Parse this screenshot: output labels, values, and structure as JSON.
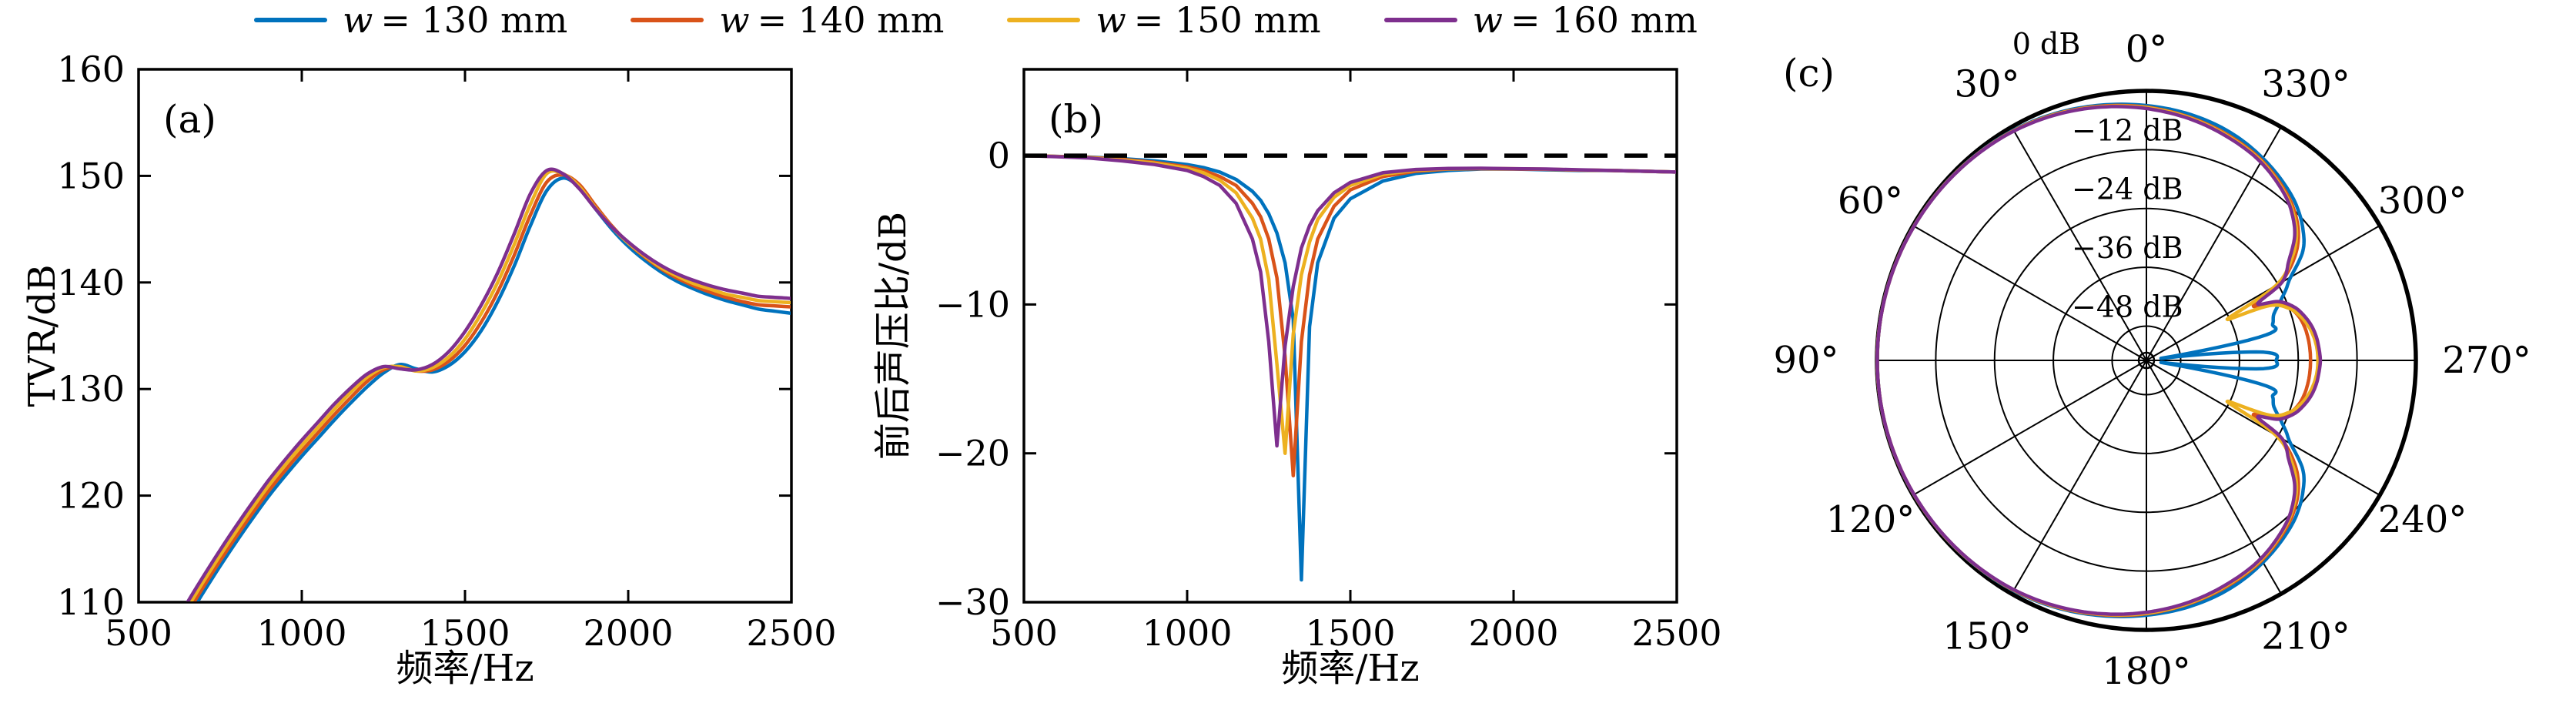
{
  "figure": {
    "background": "#ffffff"
  },
  "legend": {
    "items": [
      {
        "symbol": "line",
        "color": "#0072BD",
        "var": "w",
        "label": "= 130 mm"
      },
      {
        "symbol": "line",
        "color": "#D95319",
        "var": "w",
        "label": "= 140 mm"
      },
      {
        "symbol": "line",
        "color": "#EDB120",
        "var": "w",
        "label": "= 150 mm"
      },
      {
        "symbol": "line",
        "color": "#7E2F8E",
        "var": "w",
        "label": "= 160 mm"
      }
    ]
  },
  "panels": {
    "a": {
      "label": "(a)",
      "xlabel": "频率/Hz",
      "ylabel": "TVR/dB"
    },
    "b": {
      "label": "(b)",
      "xlabel": "频率/Hz",
      "ylabel": "前后声压比/dB"
    },
    "c": {
      "label": "(c)"
    }
  },
  "chart_data": [
    {
      "id": "a",
      "type": "line",
      "title": "(a)",
      "xlabel": "频率/Hz",
      "ylabel": "TVR/dB",
      "xlim": [
        500,
        2500
      ],
      "ylim": [
        110,
        160
      ],
      "xticks": [
        500,
        1000,
        1500,
        2000,
        2500
      ],
      "yticks": [
        110,
        120,
        130,
        140,
        150,
        160
      ],
      "grid": false,
      "x": [
        650,
        700,
        750,
        800,
        850,
        900,
        950,
        1000,
        1050,
        1100,
        1150,
        1200,
        1250,
        1300,
        1350,
        1400,
        1450,
        1500,
        1550,
        1600,
        1650,
        1700,
        1750,
        1800,
        1850,
        1900,
        1950,
        2000,
        2050,
        2100,
        2150,
        2200,
        2250,
        2300,
        2350,
        2400,
        2450,
        2500
      ],
      "series": [
        {
          "name": "w = 130 mm",
          "color": "#0072BD",
          "values": [
            108.5,
            111.0,
            113.4,
            115.7,
            117.9,
            120.0,
            121.9,
            123.7,
            125.4,
            127.1,
            128.7,
            130.2,
            131.5,
            132.3,
            131.9,
            131.6,
            132.2,
            133.5,
            135.5,
            138.2,
            141.5,
            145.3,
            148.6,
            149.8,
            148.9,
            146.9,
            145.0,
            143.4,
            142.1,
            141.0,
            140.1,
            139.4,
            138.8,
            138.3,
            137.9,
            137.5,
            137.3,
            137.1
          ]
        },
        {
          "name": "w = 140 mm",
          "color": "#D95319",
          "values": [
            109.0,
            111.5,
            113.9,
            116.2,
            118.4,
            120.5,
            122.4,
            124.2,
            125.9,
            127.6,
            129.2,
            130.7,
            131.8,
            132.1,
            131.7,
            131.8,
            132.6,
            134.1,
            136.3,
            139.1,
            142.5,
            146.3,
            149.4,
            150.1,
            149.2,
            147.2,
            145.3,
            143.7,
            142.4,
            141.3,
            140.4,
            139.7,
            139.1,
            138.6,
            138.2,
            137.9,
            137.8,
            137.7
          ]
        },
        {
          "name": "w = 150 mm",
          "color": "#EDB120",
          "values": [
            109.5,
            112.0,
            114.4,
            116.7,
            118.9,
            121.0,
            122.9,
            124.7,
            126.4,
            128.1,
            129.7,
            131.1,
            132.0,
            132.1,
            131.7,
            132.0,
            133.0,
            134.7,
            137.1,
            140.0,
            143.5,
            147.3,
            150.2,
            150.2,
            149.0,
            147.0,
            145.2,
            143.7,
            142.5,
            141.4,
            140.6,
            139.9,
            139.4,
            138.9,
            138.6,
            138.3,
            138.2,
            138.1
          ]
        },
        {
          "name": "w = 160 mm",
          "color": "#7E2F8E",
          "values": [
            110.0,
            112.5,
            114.9,
            117.2,
            119.4,
            121.5,
            123.4,
            125.2,
            126.9,
            128.6,
            130.1,
            131.4,
            132.1,
            131.9,
            131.8,
            132.3,
            133.5,
            135.4,
            137.9,
            140.9,
            144.5,
            148.3,
            150.5,
            150.2,
            148.8,
            146.9,
            145.2,
            143.8,
            142.6,
            141.6,
            140.8,
            140.2,
            139.7,
            139.3,
            139.0,
            138.7,
            138.6,
            138.5
          ]
        }
      ]
    },
    {
      "id": "b",
      "type": "line",
      "title": "(b)",
      "xlabel": "频率/Hz",
      "ylabel": "前后声压比/dB",
      "xlim": [
        500,
        2500
      ],
      "ylim": [
        -30,
        5.8
      ],
      "xticks": [
        500,
        1000,
        1500,
        2000,
        2500
      ],
      "yticks": [
        0,
        -10,
        -20,
        -30
      ],
      "zero_line": 0,
      "grid": false,
      "x": [
        500,
        600,
        700,
        800,
        900,
        1000,
        1050,
        1100,
        1150,
        1200,
        1225,
        1250,
        1275,
        1300,
        1325,
        1350,
        1375,
        1400,
        1450,
        1500,
        1600,
        1700,
        1800,
        1900,
        2000,
        2100,
        2200,
        2300,
        2400,
        2500
      ],
      "series": [
        {
          "name": "w = 130 mm",
          "color": "#0072BD",
          "values": [
            0.0,
            -0.05,
            -0.1,
            -0.2,
            -0.35,
            -0.6,
            -0.8,
            -1.1,
            -1.6,
            -2.4,
            -3.0,
            -3.9,
            -5.2,
            -7.2,
            -11.0,
            -28.5,
            -11.5,
            -7.2,
            -4.2,
            -2.9,
            -1.7,
            -1.2,
            -1.0,
            -0.9,
            -0.9,
            -0.95,
            -1.0,
            -1.0,
            -1.05,
            -1.1
          ]
        },
        {
          "name": "w = 140 mm",
          "color": "#D95319",
          "values": [
            0.0,
            -0.05,
            -0.12,
            -0.25,
            -0.45,
            -0.75,
            -1.0,
            -1.4,
            -2.0,
            -3.2,
            -4.1,
            -5.6,
            -8.2,
            -13.5,
            -21.5,
            -12.5,
            -8.0,
            -5.6,
            -3.4,
            -2.3,
            -1.4,
            -1.05,
            -0.9,
            -0.88,
            -0.9,
            -0.92,
            -0.97,
            -1.0,
            -1.05,
            -1.1
          ]
        },
        {
          "name": "w = 150 mm",
          "color": "#EDB120",
          "values": [
            0.0,
            -0.06,
            -0.14,
            -0.3,
            -0.5,
            -0.85,
            -1.15,
            -1.65,
            -2.5,
            -4.2,
            -5.6,
            -8.3,
            -14.0,
            -20.0,
            -12.0,
            -8.0,
            -5.8,
            -4.3,
            -2.8,
            -2.0,
            -1.25,
            -0.98,
            -0.88,
            -0.86,
            -0.88,
            -0.91,
            -0.96,
            -1.0,
            -1.05,
            -1.1
          ]
        },
        {
          "name": "w = 160 mm",
          "color": "#7E2F8E",
          "values": [
            0.0,
            -0.07,
            -0.16,
            -0.35,
            -0.6,
            -1.0,
            -1.4,
            -2.0,
            -3.2,
            -5.6,
            -7.8,
            -12.5,
            -19.5,
            -12.8,
            -8.8,
            -6.2,
            -4.7,
            -3.7,
            -2.5,
            -1.8,
            -1.15,
            -0.93,
            -0.86,
            -0.85,
            -0.88,
            -0.9,
            -0.95,
            -1.0,
            -1.05,
            -1.1
          ]
        }
      ]
    },
    {
      "id": "c",
      "type": "polar",
      "title": "(c)",
      "units": "dB",
      "rmax": 0,
      "rmin": -55,
      "ring_dbs": [
        -12,
        -24,
        -36,
        -48
      ],
      "ring_labels": [
        "0 dB",
        "−12 dB",
        "−24 dB",
        "−36 dB",
        "−48 dB"
      ],
      "angle_ticks_deg": [
        0,
        30,
        60,
        90,
        120,
        150,
        180,
        210,
        240,
        270,
        300,
        330
      ],
      "theta_deg": [
        0,
        10,
        20,
        30,
        40,
        50,
        60,
        70,
        80,
        90,
        100,
        110,
        120,
        130,
        140,
        150,
        160,
        170,
        180,
        190,
        200,
        210,
        220,
        225,
        230,
        235,
        240,
        243,
        246,
        250,
        254,
        258,
        262,
        266,
        270,
        274,
        278,
        282,
        286,
        290,
        294,
        297,
        300,
        305,
        310,
        315,
        320,
        330,
        340,
        350,
        360
      ],
      "series": [
        {
          "name": "w = 130 mm",
          "color": "#0072BD",
          "values": [
            -3.0,
            -2.1,
            -1.3,
            -0.75,
            -0.5,
            -0.3,
            -0.2,
            -0.12,
            -0.07,
            -0.05,
            -0.07,
            -0.12,
            -0.2,
            -0.3,
            -0.5,
            -0.75,
            -1.3,
            -2.1,
            -3.0,
            -4.0,
            -5.4,
            -7.4,
            -9.8,
            -11.3,
            -13.3,
            -16.0,
            -21.0,
            -23.0,
            -25.0,
            -27.3,
            -28.2,
            -30.0,
            -52.0,
            -31.0,
            -28.5,
            -31.0,
            -52.0,
            -30.0,
            -28.2,
            -27.3,
            -25.0,
            -23.0,
            -21.0,
            -16.0,
            -13.3,
            -11.3,
            -9.8,
            -7.4,
            -5.4,
            -4.0,
            -3.0
          ]
        },
        {
          "name": "w = 140 mm",
          "color": "#D95319",
          "values": [
            -3.3,
            -2.3,
            -1.45,
            -0.85,
            -0.55,
            -0.33,
            -0.22,
            -0.13,
            -0.08,
            -0.05,
            -0.08,
            -0.13,
            -0.22,
            -0.33,
            -0.55,
            -0.85,
            -1.45,
            -2.3,
            -3.3,
            -4.6,
            -6.1,
            -7.9,
            -10.5,
            -12.2,
            -14.5,
            -18.0,
            -23.5,
            -30.5,
            -26.0,
            -23.8,
            -22.6,
            -22.0,
            -21.7,
            -21.55,
            -21.5,
            -21.55,
            -21.7,
            -22.0,
            -22.6,
            -23.8,
            -26.0,
            -30.5,
            -23.5,
            -18.0,
            -14.5,
            -12.2,
            -10.5,
            -7.9,
            -6.1,
            -4.6,
            -3.3
          ]
        },
        {
          "name": "w = 150 mm",
          "color": "#EDB120",
          "values": [
            -3.4,
            -2.4,
            -1.5,
            -0.9,
            -0.57,
            -0.35,
            -0.23,
            -0.14,
            -0.08,
            -0.05,
            -0.08,
            -0.14,
            -0.23,
            -0.35,
            -0.57,
            -0.9,
            -1.5,
            -2.4,
            -3.4,
            -4.7,
            -6.3,
            -8.1,
            -10.8,
            -12.6,
            -15.0,
            -18.8,
            -24.5,
            -36.5,
            -27.5,
            -24.0,
            -22.3,
            -21.2,
            -20.5,
            -20.1,
            -20.0,
            -20.1,
            -20.5,
            -21.2,
            -22.3,
            -24.0,
            -27.5,
            -36.5,
            -24.5,
            -18.8,
            -15.0,
            -12.6,
            -10.8,
            -8.1,
            -6.3,
            -4.7,
            -3.4
          ]
        },
        {
          "name": "w = 160 mm",
          "color": "#7E2F8E",
          "values": [
            -3.6,
            -2.5,
            -1.6,
            -0.95,
            -0.6,
            -0.38,
            -0.25,
            -0.15,
            -0.09,
            -0.06,
            -0.09,
            -0.15,
            -0.25,
            -0.38,
            -0.6,
            -0.95,
            -1.6,
            -2.5,
            -3.6,
            -4.9,
            -6.5,
            -8.3,
            -11.0,
            -12.9,
            -15.5,
            -19.5,
            -23.0,
            -29.5,
            -25.5,
            -23.0,
            -21.6,
            -20.6,
            -20.0,
            -19.7,
            -19.5,
            -19.7,
            -20.0,
            -20.6,
            -21.6,
            -23.0,
            -25.5,
            -29.5,
            -23.0,
            -19.5,
            -15.5,
            -12.9,
            -11.0,
            -8.3,
            -6.5,
            -4.9,
            -3.6
          ]
        }
      ]
    }
  ]
}
